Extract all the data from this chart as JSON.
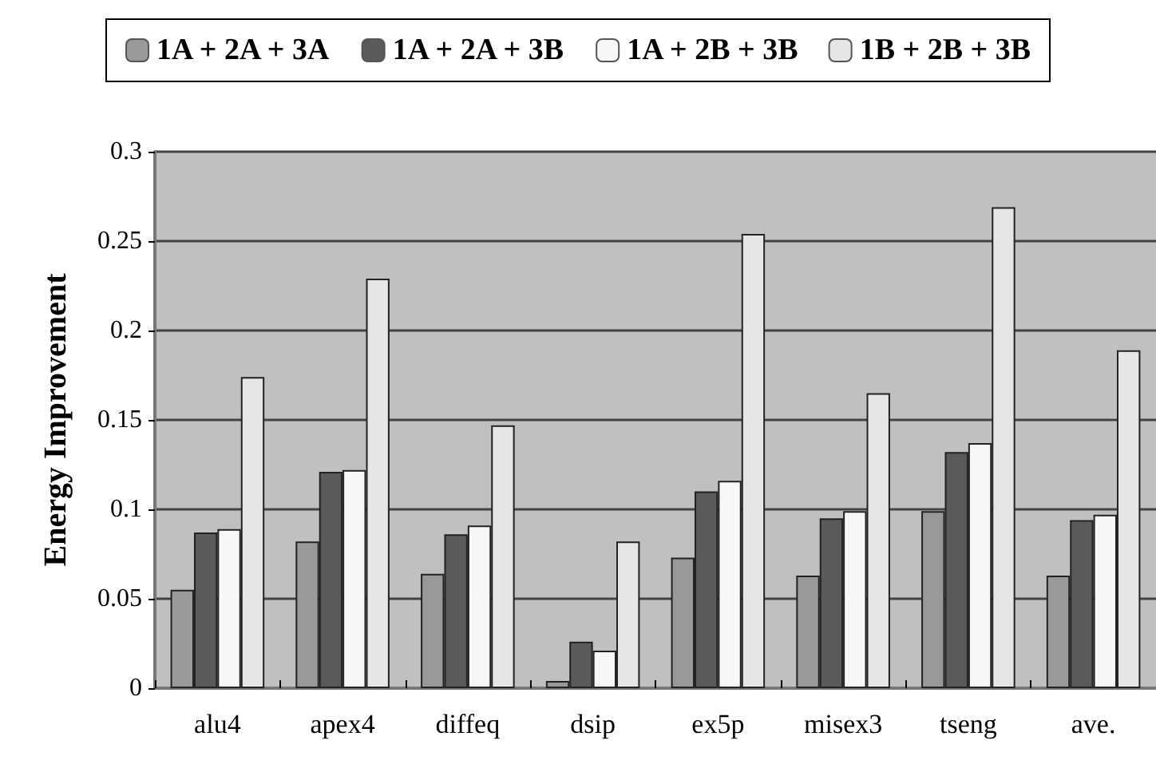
{
  "chart_data": {
    "type": "bar",
    "ylabel": "Energy Improvement",
    "categories": [
      "alu4",
      "apex4",
      "diffeq",
      "dsip",
      "ex5p",
      "misex3",
      "tseng",
      "ave."
    ],
    "series": [
      {
        "name": "1A + 2A + 3A",
        "color": "#999999",
        "values": [
          0.055,
          0.082,
          0.064,
          0.004,
          0.073,
          0.063,
          0.099,
          0.063
        ]
      },
      {
        "name": "1A + 2A + 3B",
        "color": "#5a5a5a",
        "values": [
          0.087,
          0.121,
          0.086,
          0.026,
          0.11,
          0.095,
          0.132,
          0.094
        ]
      },
      {
        "name": "1A + 2B + 3B",
        "color": "#f7f7f7",
        "values": [
          0.089,
          0.122,
          0.091,
          0.021,
          0.116,
          0.099,
          0.137,
          0.097
        ]
      },
      {
        "name": "1B + 2B + 3B",
        "color": "#e6e6e6",
        "values": [
          0.174,
          0.229,
          0.147,
          0.082,
          0.254,
          0.165,
          0.269,
          0.189
        ]
      }
    ],
    "ylim": [
      0,
      0.3
    ],
    "yticks": [
      0,
      0.05,
      0.1,
      0.15,
      0.2,
      0.25,
      0.3
    ],
    "grid": "y",
    "legend": "top"
  }
}
